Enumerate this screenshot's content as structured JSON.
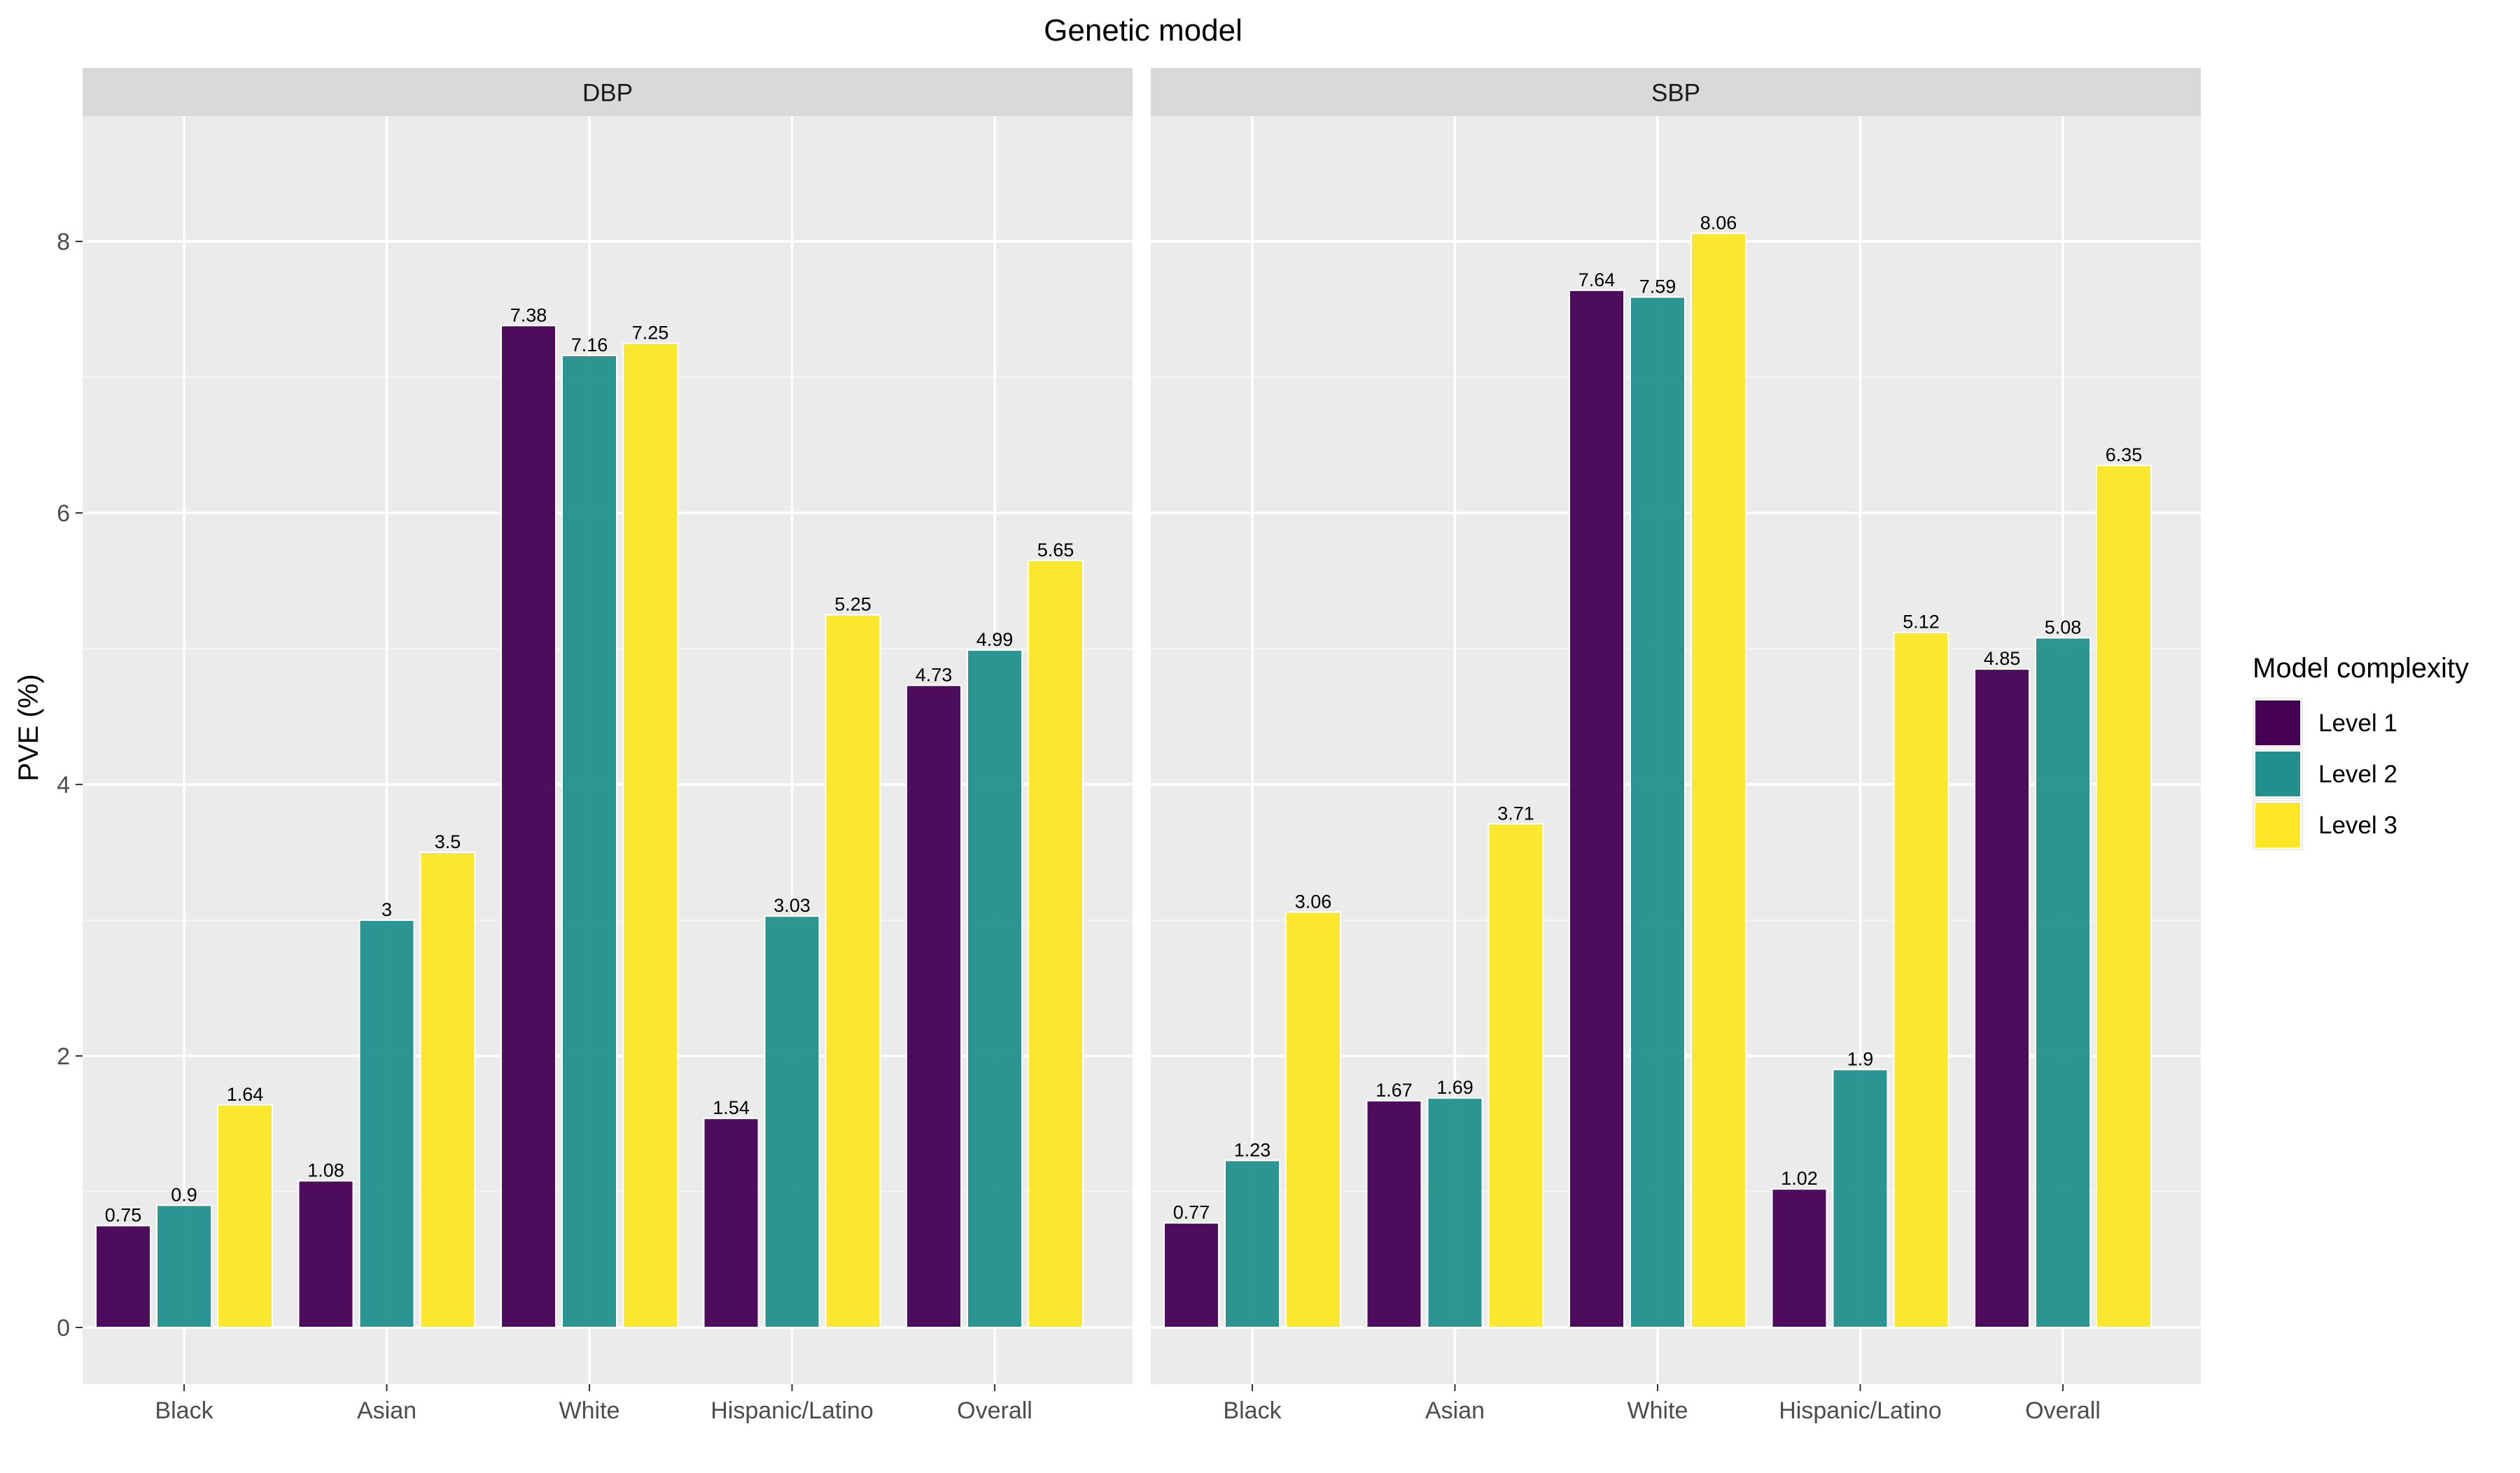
{
  "title": "Genetic model",
  "ylabel": "PVE (%)",
  "legend": {
    "title": "Model complexity",
    "items": [
      {
        "label": "Level 1",
        "color": "#440154"
      },
      {
        "label": "Level 2",
        "color": "#21908C"
      },
      {
        "label": "Level 3",
        "color": "#FDE725"
      }
    ]
  },
  "chart_data": {
    "type": "bar",
    "title": "Genetic model",
    "xlabel": "",
    "ylabel": "PVE (%)",
    "ylim": [
      0,
      8.9
    ],
    "yticks": [
      0,
      2,
      4,
      6,
      8
    ],
    "grid": true,
    "legend_position": "right",
    "categories": [
      "Black",
      "Asian",
      "White",
      "Hispanic/Latino",
      "Overall"
    ],
    "panels": [
      {
        "name": "DBP",
        "series": [
          {
            "name": "Level 1",
            "values": [
              0.75,
              1.08,
              7.38,
              1.54,
              4.73
            ]
          },
          {
            "name": "Level 2",
            "values": [
              0.9,
              3,
              7.16,
              3.03,
              4.99
            ]
          },
          {
            "name": "Level 3",
            "values": [
              1.64,
              3.5,
              7.25,
              5.25,
              5.65
            ]
          }
        ]
      },
      {
        "name": "SBP",
        "series": [
          {
            "name": "Level 1",
            "values": [
              0.77,
              1.67,
              7.64,
              1.02,
              4.85
            ]
          },
          {
            "name": "Level 2",
            "values": [
              1.23,
              1.69,
              7.59,
              1.9,
              5.08
            ]
          },
          {
            "name": "Level 3",
            "values": [
              3.06,
              3.71,
              8.06,
              5.12,
              6.35
            ]
          }
        ]
      }
    ]
  }
}
